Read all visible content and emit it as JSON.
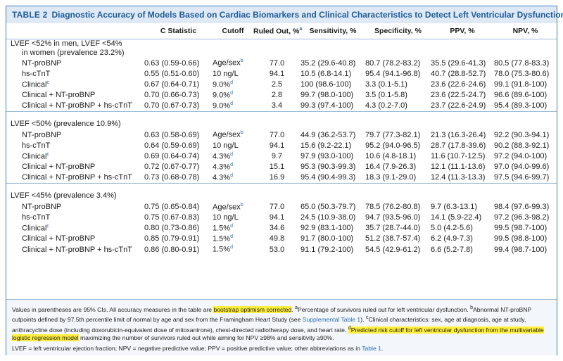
{
  "title": {
    "label": "TABLE 2",
    "text": "Diagnostic Accuracy of Models Based on Cardiac Biomarkers and Clinical Characteristics to Detect Left Ventricular Dysfunction"
  },
  "columns": [
    {
      "label": "C Statistic",
      "sup": ""
    },
    {
      "label": "Cutoff",
      "sup": ""
    },
    {
      "label": "Ruled Out, %",
      "sup": "a"
    },
    {
      "label": "Sensitivity, %",
      "sup": ""
    },
    {
      "label": "Specificity, %",
      "sup": ""
    },
    {
      "label": "PPV, %",
      "sup": ""
    },
    {
      "label": "NPV, %",
      "sup": ""
    }
  ],
  "groups": [
    {
      "header_line1": "LVEF <52% in men, LVEF <54%",
      "header_line2": "in women (prevalence 23.2%)",
      "rows": [
        {
          "model": "NT-proBNP",
          "model_sup": "",
          "c": "0.63 (0.59-0.66)",
          "cutoff": "Age/sex",
          "cutoff_sup": "b",
          "ruled": "77.0",
          "sens": "35.2 (29.6-40.8)",
          "spec": "80.7 (78.2-83.2)",
          "ppv": "35.5 (29.6-41.3)",
          "npv": "80.5 (77.8-83.3)"
        },
        {
          "model": "hs-cTnT",
          "model_sup": "",
          "c": "0.55 (0.51-0.60)",
          "cutoff": "10 ng/L",
          "cutoff_sup": "",
          "ruled": "94.1",
          "sens": "10.5 (6.8-14.1)",
          "spec": "95.4 (94.1-96.8)",
          "ppv": "40.7 (28.8-52.7)",
          "npv": "78.0 (75.3-80.6)"
        },
        {
          "model": "Clinical",
          "model_sup": "c",
          "c": "0.67 (0.64-0.71)",
          "cutoff": "9.0%",
          "cutoff_sup": "d",
          "ruled": "2.5",
          "sens": "100 (98.6-100)",
          "spec": "3.3 (0.1-5.1)",
          "ppv": "23.6 (22.6-24.6)",
          "npv": "99.1 (91.8-100)"
        },
        {
          "model": "Clinical + NT-proBNP",
          "model_sup": "",
          "c": "0.70 (0.66-0.73)",
          "cutoff": "9.0%",
          "cutoff_sup": "d",
          "ruled": "2.8",
          "sens": "99.7 (98.0-100)",
          "spec": "3.5 (0.1-5.8)",
          "ppv": "23.6 (22.5-24.7)",
          "npv": "96.6 (89.6-100)"
        },
        {
          "model": "Clinical + NT-proBNP + hs-cTnT",
          "model_sup": "",
          "c": "0.70 (0.67-0.73)",
          "cutoff": "9.0%",
          "cutoff_sup": "d",
          "ruled": "3.4",
          "sens": "99.3 (97.4-100)",
          "spec": "4.3 (0.2-7.0)",
          "ppv": "23.7 (22.6-24.9)",
          "npv": "95.4 (89.3-100)"
        }
      ]
    },
    {
      "header_line1": "LVEF <50% (prevalence 10.9%)",
      "header_line2": "",
      "rows": [
        {
          "model": "NT-proBNP",
          "model_sup": "",
          "c": "0.63 (0.58-0.69)",
          "cutoff": "Age/sex",
          "cutoff_sup": "b",
          "ruled": "77.0",
          "sens": "44.9 (36.2-53.7)",
          "spec": "79.7 (77.3-82.1)",
          "ppv": "21.3 (16.3-26.4)",
          "npv": "92.2 (90.3-94.1)"
        },
        {
          "model": "hs-cTnT",
          "model_sup": "",
          "c": "0.64 (0.59-0.69)",
          "cutoff": "10 ng/L",
          "cutoff_sup": "",
          "ruled": "94.1",
          "sens": "15.6 (9.2-22.1)",
          "spec": "95.2 (94.0-96.5)",
          "ppv": "28.7 (17.8-39.6)",
          "npv": "90.2 (88.3-92.1)"
        },
        {
          "model": "Clinical",
          "model_sup": "c",
          "c": "0.69 (0.64-0.74)",
          "cutoff": "4.3%",
          "cutoff_sup": "d",
          "ruled": "9.7",
          "sens": "97.9 (93.0-100)",
          "spec": "10.6 (4.8-18.1)",
          "ppv": "11.6 (10.7-12.5)",
          "npv": "97.2 (94.0-100)"
        },
        {
          "model": "Clinical + NT-proBNP",
          "model_sup": "",
          "c": "0.72 (0.67-0.77)",
          "cutoff": "4.3%",
          "cutoff_sup": "d",
          "ruled": "15.1",
          "sens": "95.3 (90.3-99.3)",
          "spec": "16.4 (7.9-26.3)",
          "ppv": "12.1 (11.1-13.6)",
          "npv": "97.0 (94.0-99.6)"
        },
        {
          "model": "Clinical + NT-proBNP + hs-cTnT",
          "model_sup": "",
          "c": "0.73 (0.68-0.78)",
          "cutoff": "4.3%",
          "cutoff_sup": "d",
          "ruled": "16.9",
          "sens": "95.4 (90.4-99.3)",
          "spec": "18.3 (9.1-29.0)",
          "ppv": "12.4 (11.3-13.3)",
          "npv": "97.5 (94.6-99.7)"
        }
      ]
    },
    {
      "header_line1": "LVEF <45% (prevalence 3.4%)",
      "header_line2": "",
      "rows": [
        {
          "model": "NT-proBNP",
          "model_sup": "",
          "c": "0.75 (0.65-0.84)",
          "cutoff": "Age/sex",
          "cutoff_sup": "b",
          "ruled": "77.0",
          "sens": "65.0 (50.3-79.7)",
          "spec": "78.5 (76.2-80.8)",
          "ppv": "9.7 (6.3-13.1)",
          "npv": "98.4 (97.6-99.3)"
        },
        {
          "model": "hs-cTnT",
          "model_sup": "",
          "c": "0.75 (0.67-0.83)",
          "cutoff": "10 ng/L",
          "cutoff_sup": "",
          "ruled": "94.1",
          "sens": "24.5 (10.9-38.0)",
          "spec": "94.7 (93.5-96.0)",
          "ppv": "14.1 (5.9-22.4)",
          "npv": "97.2 (96.3-98.2)"
        },
        {
          "model": "Clinical",
          "model_sup": "c",
          "c": "0.80 (0.73-0.86)",
          "cutoff": "1.5%",
          "cutoff_sup": "d",
          "ruled": "34.6",
          "sens": "92.9 (83.1-100)",
          "spec": "35.7 (28.7-44.0)",
          "ppv": "5.0 (4.2-5.6)",
          "npv": "99.5 (98.7-100)"
        },
        {
          "model": "Clinical + NT-proBNP",
          "model_sup": "",
          "c": "0.85 (0.79-0.91)",
          "cutoff": "1.5%",
          "cutoff_sup": "d",
          "ruled": "49.8",
          "sens": "91.7 (80.0-100)",
          "spec": "51.2 (38.7-57.4)",
          "ppv": "6.2 (4.9-7.3)",
          "npv": "99.5 (98.8-100)"
        },
        {
          "model": "Clinical + NT-proBNP + hs-cTnT",
          "model_sup": "",
          "c": "0.86 (0.80-0.91)",
          "cutoff": "1.5%",
          "cutoff_sup": "d",
          "ruled": "53.0",
          "sens": "91.1 (79.2-100)",
          "spec": "54.5 (42.9-61.2)",
          "ppv": "6.6 (5.2-7.8)",
          "npv": "99.4 (98.7-100)"
        }
      ]
    }
  ],
  "notes": {
    "p1": "Values in parentheses are 95% CIs. All accuracy measures in the table are ",
    "hl1": "bootstrap optimism corrected",
    "p2": ". ",
    "sa": "a",
    "p3": "Percentage of survivors ruled out for left ventricular dysfunction. ",
    "sb": "b",
    "p4": "Abnormal NT-proBNP cutpoints defined by 97.5th percentile limit of normal by age and sex from the Framingham Heart Study (see ",
    "link1": "Supplemental Table 1",
    "p5": "). ",
    "sc": "c",
    "p6": "Clinical characteristics: sex, age at diagnosis, age at study, anthracycline dose (including doxorubicin-equivalent dose of mitoxantrone), chest-directed radiotherapy dose, and heart rate. ",
    "sd": "d",
    "hl2": "Predicted risk cutoff for left ventricular dysfunction from the multivariable logistic regression model",
    "p7": " maximizing the number of survivors ruled out while aiming for NPV ≥98% and sensitivity ≥90%.",
    "abbr": "LVEF = left ventricular ejection fraction; NPV = negative predictive value; PPV = positive predictive value; other abbreviations as in ",
    "link2": "Table 1",
    "abbr_end": "."
  }
}
